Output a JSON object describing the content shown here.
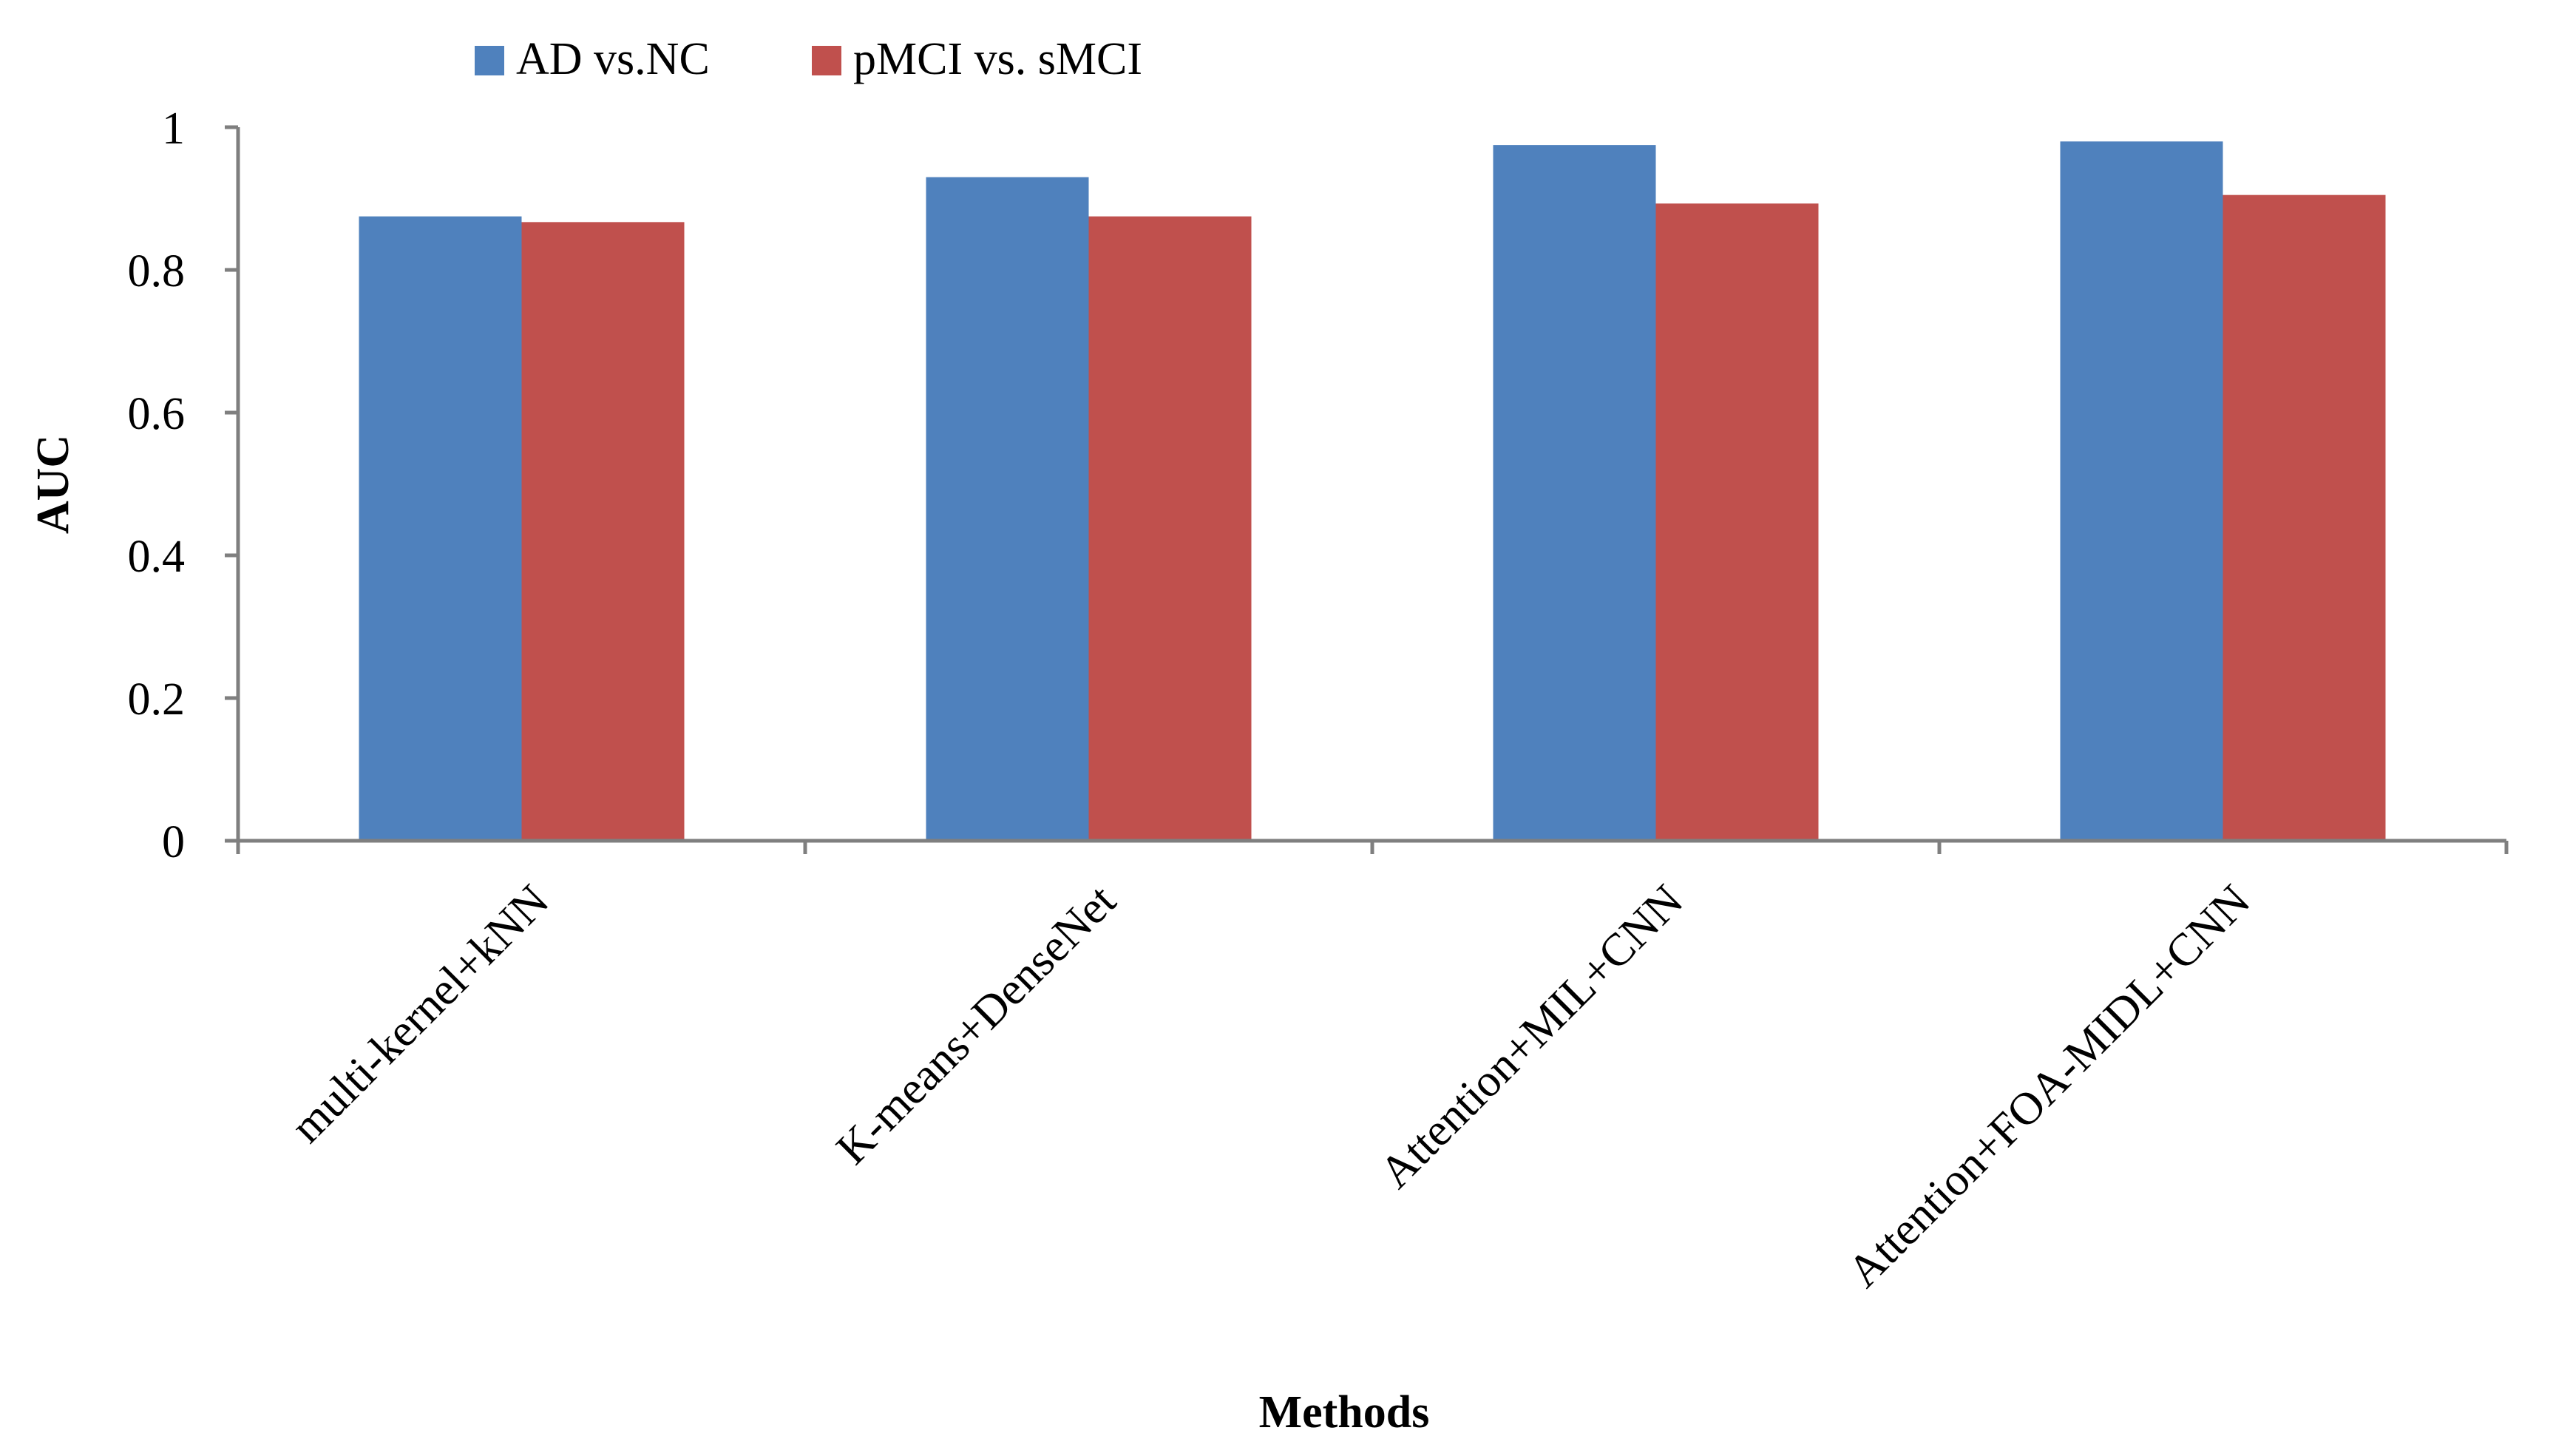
{
  "chart_data": {
    "type": "bar",
    "title": "",
    "xlabel": "Methods",
    "ylabel": "AUC",
    "categories": [
      "multi-kernel+kNN",
      "K-means+DenseNet",
      "Attention+MIL+CNN",
      "Attention+FOA-MIDL+CNN"
    ],
    "series": [
      {
        "name": "AD vs.NC",
        "color": "#4F81BD",
        "values": [
          0.875,
          0.93,
          0.975,
          0.98
        ]
      },
      {
        "name": "pMCI vs. sMCI",
        "color": "#C0504D",
        "values": [
          0.867,
          0.875,
          0.893,
          0.905
        ]
      }
    ],
    "ylim": [
      0,
      1
    ],
    "yticks": [
      0,
      0.2,
      0.4,
      0.6,
      0.8,
      1
    ],
    "ytick_labels": [
      "0",
      "0.2",
      "0.4",
      "0.6",
      "0.8",
      "1"
    ],
    "grid": false,
    "legend_position": "top-left"
  }
}
